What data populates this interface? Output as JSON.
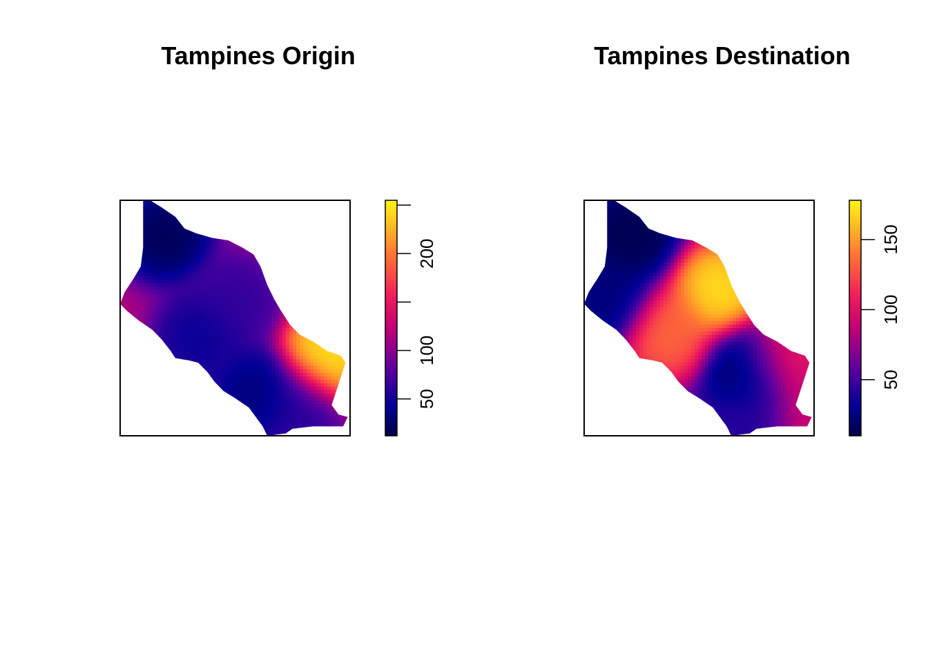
{
  "chart_data": [
    {
      "type": "heatmap",
      "title": "Tampines Origin",
      "colorbar": {
        "range": [
          12,
          255
        ],
        "ticks": [
          50,
          100,
          150,
          200,
          250
        ],
        "tick_labels": [
          "50",
          "100",
          "",
          "200",
          ""
        ]
      },
      "hotspots": [
        {
          "x": 0.5,
          "y": 0.57,
          "value": 60
        },
        {
          "x": 0.9,
          "y": 0.33,
          "value": 255
        },
        {
          "x": 0.2,
          "y": 0.85,
          "value": 12
        },
        {
          "x": 0.6,
          "y": 0.18,
          "value": 25
        },
        {
          "x": 0.35,
          "y": 0.42,
          "value": 40
        },
        {
          "x": 0.78,
          "y": 0.12,
          "value": 55
        }
      ],
      "base_value": 115
    },
    {
      "type": "heatmap",
      "title": "Tampines Destination",
      "colorbar": {
        "range": [
          10,
          178
        ],
        "ticks": [
          50,
          100,
          150
        ],
        "tick_labels": [
          "50",
          "100",
          "150"
        ]
      },
      "hotspots": [
        {
          "x": 0.59,
          "y": 0.62,
          "value": 178
        },
        {
          "x": 0.36,
          "y": 0.44,
          "value": 140
        },
        {
          "x": 0.87,
          "y": 0.33,
          "value": 110
        },
        {
          "x": 0.72,
          "y": 0.28,
          "value": 15
        },
        {
          "x": 0.2,
          "y": 0.85,
          "value": 10
        },
        {
          "x": 0.12,
          "y": 0.58,
          "value": 20
        },
        {
          "x": 0.75,
          "y": 0.06,
          "value": 40
        },
        {
          "x": 0.97,
          "y": 0.07,
          "value": 95
        }
      ],
      "base_value": 55
    }
  ]
}
